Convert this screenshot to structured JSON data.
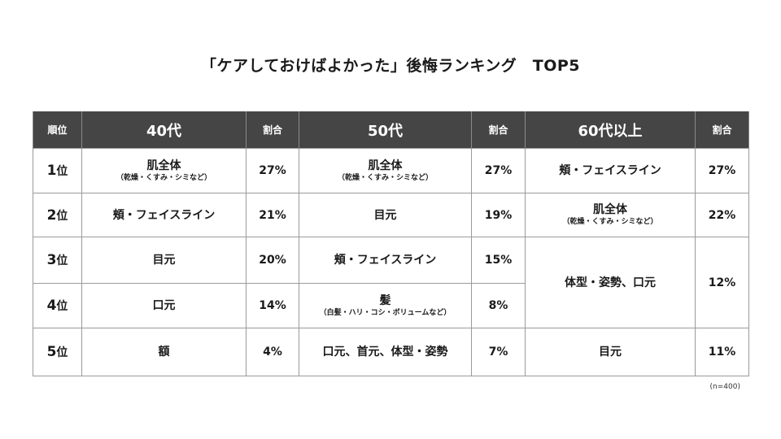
{
  "title": "「ケアしておけばよかった」後悔ランキング　TOP5",
  "header": {
    "rank": "順位",
    "age1": "40代",
    "age2": "50代",
    "age3": "60代以上",
    "ratio": "割合"
  },
  "rows": [
    {
      "rank": "1",
      "rank_unit": "位",
      "c40": {
        "main": "肌全体",
        "sub": "（乾燥・くすみ・シミなど）",
        "pct": "27%"
      },
      "c50": {
        "main": "肌全体",
        "sub": "（乾燥・くすみ・シミなど）",
        "pct": "27%"
      },
      "c60": {
        "main": "頬・フェイスライン",
        "pct": "27%"
      }
    },
    {
      "rank": "2",
      "rank_unit": "位",
      "c40": {
        "main": "頬・フェイスライン",
        "pct": "21%"
      },
      "c50": {
        "main": "目元",
        "pct": "19%"
      },
      "c60": {
        "main": "肌全体",
        "sub": "（乾燥・くすみ・シミなど）",
        "pct": "22%"
      }
    },
    {
      "rank": "3",
      "rank_unit": "位",
      "c40": {
        "main": "目元",
        "pct": "20%"
      },
      "c50": {
        "main": "頬・フェイスライン",
        "pct": "15%"
      },
      "c60": {
        "main": "体型・姿勢、口元",
        "pct": "12%"
      }
    },
    {
      "rank": "4",
      "rank_unit": "位",
      "c40": {
        "main": "口元",
        "pct": "14%"
      },
      "c50": {
        "main": "髪",
        "sub": "（白髪・ハリ・コシ・ボリュームなど）",
        "pct": "8%"
      }
    },
    {
      "rank": "5",
      "rank_unit": "位",
      "c40": {
        "main": "額",
        "pct": "4%"
      },
      "c50": {
        "main": "口元、首元、体型・姿勢",
        "pct": "7%"
      },
      "c60": {
        "main": "目元",
        "pct": "11%"
      }
    }
  ],
  "note": "(n=400)"
}
